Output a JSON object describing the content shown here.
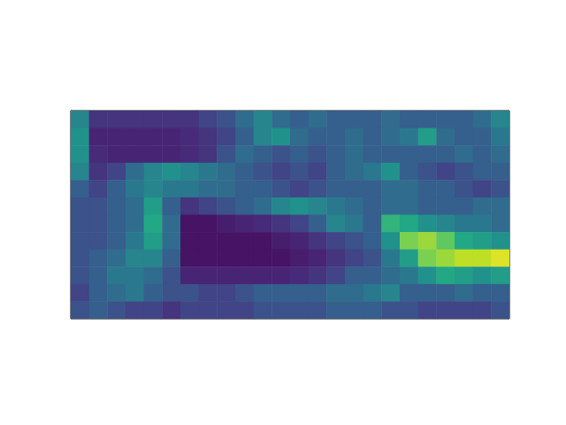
{
  "chart_data": {
    "type": "heatmap",
    "cells": [
      [
        0.45,
        0.15,
        0.15,
        0.15,
        0.15,
        0.15,
        0.15,
        0.2,
        0.25,
        0.35,
        0.45,
        0.35,
        0.3,
        0.35,
        0.3,
        0.3,
        0.3,
        0.35,
        0.3,
        0.3,
        0.3,
        0.3,
        0.35,
        0.45
      ],
      [
        0.5,
        0.1,
        0.1,
        0.1,
        0.1,
        0.1,
        0.12,
        0.15,
        0.2,
        0.3,
        0.45,
        0.5,
        0.35,
        0.3,
        0.3,
        0.35,
        0.3,
        0.35,
        0.4,
        0.55,
        0.35,
        0.3,
        0.3,
        0.4
      ],
      [
        0.5,
        0.12,
        0.1,
        0.1,
        0.1,
        0.1,
        0.12,
        0.15,
        0.25,
        0.35,
        0.3,
        0.25,
        0.3,
        0.25,
        0.3,
        0.35,
        0.3,
        0.3,
        0.3,
        0.3,
        0.3,
        0.35,
        0.3,
        0.35
      ],
      [
        0.45,
        0.15,
        0.2,
        0.35,
        0.45,
        0.5,
        0.45,
        0.4,
        0.35,
        0.3,
        0.25,
        0.2,
        0.25,
        0.2,
        0.3,
        0.35,
        0.4,
        0.5,
        0.3,
        0.25,
        0.2,
        0.25,
        0.3,
        0.3
      ],
      [
        0.3,
        0.2,
        0.3,
        0.4,
        0.45,
        0.4,
        0.4,
        0.35,
        0.35,
        0.3,
        0.3,
        0.25,
        0.2,
        0.25,
        0.3,
        0.3,
        0.3,
        0.35,
        0.35,
        0.3,
        0.3,
        0.25,
        0.2,
        0.25
      ],
      [
        0.25,
        0.25,
        0.3,
        0.35,
        0.55,
        0.3,
        0.15,
        0.2,
        0.25,
        0.3,
        0.35,
        0.45,
        0.5,
        0.45,
        0.4,
        0.35,
        0.3,
        0.35,
        0.35,
        0.3,
        0.3,
        0.3,
        0.35,
        0.35
      ],
      [
        0.25,
        0.25,
        0.3,
        0.35,
        0.6,
        0.35,
        0.05,
        0.05,
        0.08,
        0.1,
        0.12,
        0.15,
        0.2,
        0.3,
        0.45,
        0.4,
        0.3,
        0.65,
        0.6,
        0.5,
        0.45,
        0.4,
        0.4,
        0.35
      ],
      [
        0.25,
        0.25,
        0.3,
        0.4,
        0.55,
        0.35,
        0.05,
        0.05,
        0.05,
        0.05,
        0.05,
        0.08,
        0.1,
        0.15,
        0.2,
        0.25,
        0.3,
        0.5,
        0.8,
        0.85,
        0.75,
        0.6,
        0.55,
        0.5
      ],
      [
        0.25,
        0.3,
        0.35,
        0.45,
        0.45,
        0.3,
        0.05,
        0.05,
        0.05,
        0.05,
        0.05,
        0.05,
        0.08,
        0.1,
        0.15,
        0.2,
        0.25,
        0.4,
        0.55,
        0.8,
        0.85,
        0.9,
        0.9,
        0.95
      ],
      [
        0.25,
        0.3,
        0.4,
        0.4,
        0.35,
        0.25,
        0.1,
        0.1,
        0.1,
        0.1,
        0.1,
        0.1,
        0.12,
        0.15,
        0.2,
        0.3,
        0.3,
        0.35,
        0.4,
        0.5,
        0.6,
        0.55,
        0.5,
        0.55
      ],
      [
        0.2,
        0.3,
        0.35,
        0.4,
        0.3,
        0.25,
        0.25,
        0.2,
        0.2,
        0.25,
        0.3,
        0.3,
        0.3,
        0.3,
        0.35,
        0.35,
        0.4,
        0.45,
        0.3,
        0.3,
        0.3,
        0.35,
        0.3,
        0.3
      ],
      [
        0.25,
        0.3,
        0.25,
        0.2,
        0.2,
        0.15,
        0.2,
        0.2,
        0.2,
        0.2,
        0.25,
        0.25,
        0.25,
        0.25,
        0.3,
        0.3,
        0.3,
        0.25,
        0.25,
        0.2,
        0.2,
        0.2,
        0.2,
        0.25
      ]
    ],
    "xlim": [
      -0.5,
      23.5
    ],
    "ylim": [
      11.5,
      -0.5
    ],
    "tick_labels": false
  }
}
